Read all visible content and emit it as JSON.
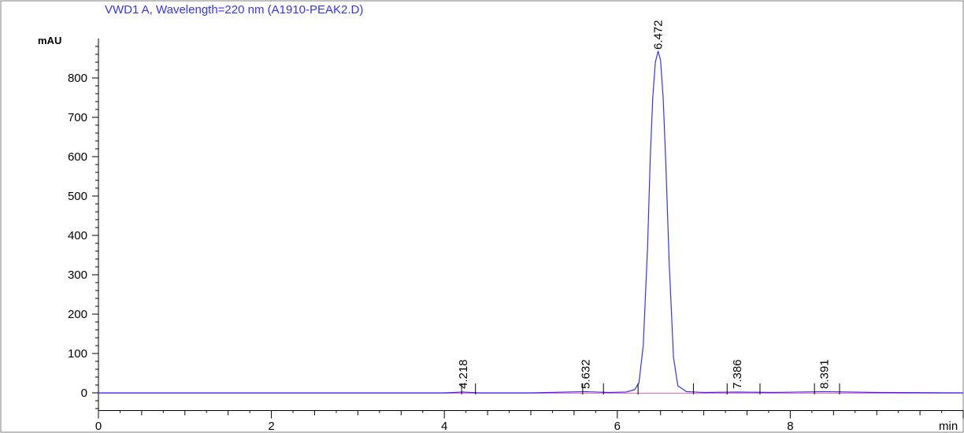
{
  "chart_data": {
    "type": "line",
    "title": "VWD1 A, Wavelength=220 nm (A1910-PEAK2.D)",
    "ylabel": "mAU",
    "xlabel": "min",
    "xlim": [
      0,
      10
    ],
    "ylim": [
      -45,
      900
    ],
    "x_ticks": [
      0,
      2,
      4,
      6,
      8
    ],
    "y_ticks": [
      0,
      100,
      200,
      300,
      400,
      500,
      600,
      700,
      800
    ],
    "grid": false,
    "series": [
      {
        "color": "#3333ff",
        "x": [
          0,
          1,
          2,
          3,
          4,
          4.218,
          4.4,
          5,
          5.632,
          5.9,
          6.1,
          6.2,
          6.25,
          6.3,
          6.35,
          6.38,
          6.41,
          6.44,
          6.472,
          6.5,
          6.53,
          6.56,
          6.6,
          6.65,
          6.7,
          6.8,
          7.0,
          7.386,
          7.8,
          8.391,
          9.0,
          10.0
        ],
        "y": [
          0,
          0,
          0,
          0,
          0,
          2,
          0,
          0,
          3,
          1,
          2,
          8,
          25,
          120,
          370,
          590,
          750,
          840,
          868,
          845,
          750,
          590,
          330,
          90,
          18,
          3,
          1,
          2,
          1,
          3,
          1,
          0
        ]
      }
    ],
    "peaks": [
      {
        "rt": "4.218",
        "x": 4.218,
        "y": 2
      },
      {
        "rt": "5.632",
        "x": 5.632,
        "y": 3
      },
      {
        "rt": "6.472",
        "x": 6.472,
        "y": 868
      },
      {
        "rt": "7.386",
        "x": 7.386,
        "y": 2
      },
      {
        "rt": "8.391",
        "x": 8.391,
        "y": 3
      }
    ],
    "baseline_markers": [
      4.2,
      4.36,
      5.6,
      5.84,
      6.24,
      6.88,
      7.27,
      7.65,
      8.28,
      8.57
    ],
    "title_color": "#3333ff",
    "baseline_color": "#ff66cc"
  }
}
